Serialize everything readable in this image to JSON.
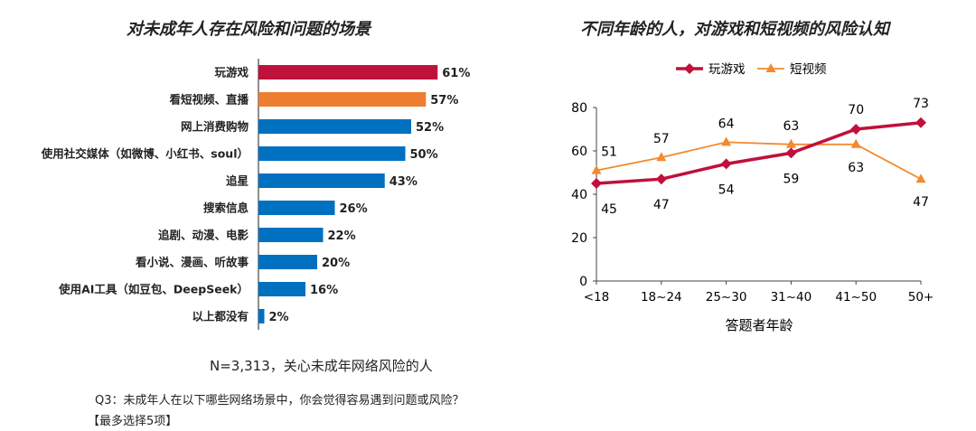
{
  "chart_data": [
    {
      "type": "bar",
      "orientation": "horizontal",
      "title": "对未成年人存在风险和问题的场景",
      "categories": [
        "玩游戏",
        "看短视频、直播",
        "网上消费购物",
        "使用社交媒体（如微博、小红书、soul）",
        "追星",
        "搜索信息",
        "追剧、动漫、电影",
        "看小说、漫画、听故事",
        "使用AI工具（如豆包、DeepSeek）",
        "以上都没有"
      ],
      "values": [
        61,
        57,
        52,
        50,
        43,
        26,
        22,
        20,
        16,
        2
      ],
      "value_labels": [
        "61%",
        "57%",
        "52%",
        "50%",
        "43%",
        "26%",
        "22%",
        "20%",
        "16%",
        "2%"
      ],
      "colors": [
        "#c0103c",
        "#ed7d31",
        "#0070c0",
        "#0070c0",
        "#0070c0",
        "#0070c0",
        "#0070c0",
        "#0070c0",
        "#0070c0",
        "#0070c0"
      ],
      "unit": "%"
    },
    {
      "type": "line",
      "title": "不同年龄的人，对游戏和短视频的风险认知",
      "x": [
        "<18",
        "18~24",
        "25~30",
        "31~40",
        "41~50",
        "50+"
      ],
      "xlabel": "答题者年龄",
      "ylabel": "",
      "ylim": [
        0,
        80
      ],
      "yticks": [
        "0",
        "20",
        "40",
        "60",
        "80"
      ],
      "legend": "top",
      "series": [
        {
          "name": "玩游戏",
          "values": [
            45,
            47,
            54,
            59,
            70,
            73
          ],
          "color": "#c0103c",
          "marker": "diamond"
        },
        {
          "name": "短视频",
          "values": [
            51,
            57,
            64,
            63,
            63,
            47
          ],
          "color": "#f28a2e",
          "marker": "triangle"
        }
      ]
    }
  ],
  "notes": {
    "sample": "N=3,313，关心未成年网络风险的人",
    "question": "Q3：未成年人在以下哪些网络场景中，你会觉得容易遇到问题或风险？",
    "hint": "【最多选择5项】"
  }
}
